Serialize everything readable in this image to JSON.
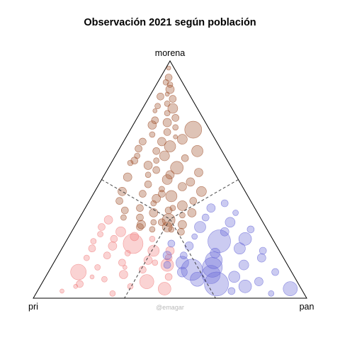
{
  "chart_data": {
    "type": "scatter",
    "coordinate_system": "ternary",
    "title": "Observación 2021 según población",
    "vertices": {
      "top": "morena",
      "left": "pri",
      "right": "pan"
    },
    "credit": "@emagar",
    "point_size_meaning": "población",
    "colors": {
      "morena": "#A0522D",
      "pri": "#F08080",
      "pan": "#6A6AD8"
    },
    "dashed_boundaries": true,
    "groups": [
      {
        "name": "morena",
        "points": [
          [
            0.97,
            0.02,
            0.01,
            3
          ],
          [
            0.93,
            0.04,
            0.03,
            5
          ],
          [
            0.9,
            0.05,
            0.05,
            4
          ],
          [
            0.88,
            0.06,
            0.06,
            6
          ],
          [
            0.86,
            0.08,
            0.06,
            3
          ],
          [
            0.84,
            0.07,
            0.09,
            5
          ],
          [
            0.82,
            0.1,
            0.08,
            4
          ],
          [
            0.8,
            0.09,
            0.11,
            7
          ],
          [
            0.78,
            0.12,
            0.1,
            4
          ],
          [
            0.76,
            0.1,
            0.14,
            5
          ],
          [
            0.74,
            0.14,
            0.12,
            6
          ],
          [
            0.72,
            0.12,
            0.16,
            4
          ],
          [
            0.7,
            0.16,
            0.14,
            5
          ],
          [
            0.68,
            0.14,
            0.18,
            3
          ],
          [
            0.66,
            0.2,
            0.14,
            6
          ],
          [
            0.64,
            0.18,
            0.18,
            8
          ],
          [
            0.62,
            0.24,
            0.14,
            5
          ],
          [
            0.6,
            0.22,
            0.18,
            7
          ],
          [
            0.58,
            0.26,
            0.16,
            4
          ],
          [
            0.56,
            0.3,
            0.14,
            6
          ],
          [
            0.55,
            0.2,
            0.25,
            9
          ],
          [
            0.54,
            0.28,
            0.18,
            5
          ],
          [
            0.52,
            0.32,
            0.16,
            4
          ],
          [
            0.5,
            0.26,
            0.24,
            7
          ],
          [
            0.48,
            0.34,
            0.18,
            5
          ],
          [
            0.47,
            0.22,
            0.31,
            6
          ],
          [
            0.46,
            0.3,
            0.24,
            4
          ],
          [
            0.44,
            0.38,
            0.18,
            5
          ],
          [
            0.43,
            0.28,
            0.29,
            8
          ],
          [
            0.42,
            0.34,
            0.24,
            6
          ],
          [
            0.4,
            0.36,
            0.24,
            4
          ],
          [
            0.39,
            0.26,
            0.35,
            7
          ],
          [
            0.38,
            0.42,
            0.2,
            5
          ],
          [
            0.37,
            0.32,
            0.31,
            5
          ],
          [
            0.36,
            0.38,
            0.26,
            6
          ],
          [
            0.35,
            0.28,
            0.37,
            4
          ],
          [
            0.34,
            0.44,
            0.22,
            5
          ],
          [
            0.33,
            0.34,
            0.33,
            9
          ],
          [
            0.32,
            0.4,
            0.28,
            4
          ],
          [
            0.31,
            0.3,
            0.39,
            6
          ],
          [
            0.3,
            0.46,
            0.24,
            5
          ],
          [
            0.3,
            0.36,
            0.34,
            7
          ],
          [
            0.29,
            0.42,
            0.29,
            4
          ],
          [
            0.28,
            0.32,
            0.4,
            5
          ],
          [
            0.45,
            0.45,
            0.1,
            6
          ],
          [
            0.41,
            0.48,
            0.11,
            5
          ],
          [
            0.57,
            0.36,
            0.07,
            4
          ],
          [
            0.63,
            0.3,
            0.07,
            5
          ],
          [
            0.51,
            0.4,
            0.09,
            6
          ],
          [
            0.69,
            0.22,
            0.09,
            4
          ],
          [
            0.75,
            0.18,
            0.07,
            5
          ],
          [
            0.81,
            0.14,
            0.05,
            4
          ],
          [
            0.71,
            0.06,
            0.23,
            12
          ],
          [
            0.62,
            0.09,
            0.29,
            8
          ],
          [
            0.53,
            0.13,
            0.34,
            6
          ],
          [
            0.45,
            0.16,
            0.39,
            7
          ],
          [
            0.66,
            0.27,
            0.07,
            5
          ],
          [
            0.59,
            0.15,
            0.26,
            5
          ],
          [
            0.49,
            0.18,
            0.33,
            6
          ],
          [
            0.41,
            0.21,
            0.38,
            5
          ],
          [
            0.36,
            0.24,
            0.4,
            6
          ],
          [
            0.34,
            0.5,
            0.16,
            4
          ],
          [
            0.37,
            0.48,
            0.15,
            5
          ],
          [
            0.6,
            0.32,
            0.08,
            4
          ],
          [
            0.73,
            0.2,
            0.07,
            6
          ],
          [
            0.79,
            0.16,
            0.05,
            3
          ],
          [
            0.85,
            0.11,
            0.04,
            5
          ],
          [
            0.91,
            0.06,
            0.03,
            4
          ],
          [
            0.67,
            0.12,
            0.21,
            7
          ],
          [
            0.58,
            0.34,
            0.08,
            5
          ],
          [
            0.52,
            0.24,
            0.24,
            6
          ],
          [
            0.44,
            0.31,
            0.25,
            5
          ],
          [
            0.38,
            0.3,
            0.32,
            4
          ],
          [
            0.32,
            0.37,
            0.31,
            5
          ],
          [
            0.31,
            0.45,
            0.24,
            6
          ],
          [
            0.29,
            0.35,
            0.36,
            4
          ]
        ]
      },
      {
        "name": "pri",
        "points": [
          [
            0.33,
            0.56,
            0.11,
            6
          ],
          [
            0.3,
            0.6,
            0.1,
            5
          ],
          [
            0.28,
            0.54,
            0.18,
            7
          ],
          [
            0.27,
            0.62,
            0.11,
            4
          ],
          [
            0.26,
            0.5,
            0.24,
            6
          ],
          [
            0.25,
            0.58,
            0.17,
            5
          ],
          [
            0.24,
            0.66,
            0.1,
            4
          ],
          [
            0.23,
            0.52,
            0.25,
            14
          ],
          [
            0.22,
            0.6,
            0.18,
            6
          ],
          [
            0.21,
            0.68,
            0.11,
            5
          ],
          [
            0.2,
            0.46,
            0.34,
            8
          ],
          [
            0.19,
            0.56,
            0.25,
            4
          ],
          [
            0.18,
            0.64,
            0.18,
            5
          ],
          [
            0.17,
            0.72,
            0.11,
            4
          ],
          [
            0.16,
            0.5,
            0.34,
            6
          ],
          [
            0.15,
            0.6,
            0.25,
            5
          ],
          [
            0.14,
            0.44,
            0.42,
            9
          ],
          [
            0.13,
            0.7,
            0.17,
            4
          ],
          [
            0.12,
            0.54,
            0.34,
            5
          ],
          [
            0.11,
            0.78,
            0.11,
            11
          ],
          [
            0.1,
            0.62,
            0.28,
            6
          ],
          [
            0.09,
            0.46,
            0.45,
            5
          ],
          [
            0.08,
            0.7,
            0.22,
            4
          ],
          [
            0.07,
            0.55,
            0.38,
            10
          ],
          [
            0.06,
            0.8,
            0.14,
            5
          ],
          [
            0.05,
            0.62,
            0.33,
            4
          ],
          [
            0.04,
            0.5,
            0.46,
            9
          ],
          [
            0.03,
            0.88,
            0.09,
            3
          ],
          [
            0.02,
            0.7,
            0.28,
            4
          ],
          [
            0.2,
            0.4,
            0.4,
            6
          ],
          [
            0.17,
            0.42,
            0.41,
            5
          ],
          [
            0.25,
            0.44,
            0.31,
            4
          ],
          [
            0.13,
            0.6,
            0.27,
            3
          ],
          [
            0.09,
            0.74,
            0.17,
            3
          ],
          [
            0.05,
            0.82,
            0.13,
            3
          ],
          [
            0.15,
            0.48,
            0.37,
            4
          ]
        ]
      },
      {
        "name": "pan",
        "points": [
          [
            0.4,
            0.1,
            0.5,
            5
          ],
          [
            0.38,
            0.16,
            0.46,
            6
          ],
          [
            0.36,
            0.08,
            0.56,
            4
          ],
          [
            0.34,
            0.2,
            0.46,
            5
          ],
          [
            0.32,
            0.12,
            0.56,
            7
          ],
          [
            0.3,
            0.24,
            0.46,
            8
          ],
          [
            0.29,
            0.06,
            0.65,
            5
          ],
          [
            0.28,
            0.16,
            0.56,
            6
          ],
          [
            0.26,
            0.28,
            0.46,
            4
          ],
          [
            0.25,
            0.1,
            0.65,
            9
          ],
          [
            0.24,
            0.2,
            0.56,
            16
          ],
          [
            0.22,
            0.32,
            0.46,
            6
          ],
          [
            0.21,
            0.14,
            0.65,
            8
          ],
          [
            0.2,
            0.06,
            0.74,
            5
          ],
          [
            0.19,
            0.24,
            0.57,
            7
          ],
          [
            0.18,
            0.36,
            0.46,
            5
          ],
          [
            0.17,
            0.08,
            0.75,
            6
          ],
          [
            0.16,
            0.26,
            0.58,
            12
          ],
          [
            0.15,
            0.38,
            0.47,
            9
          ],
          [
            0.14,
            0.16,
            0.7,
            7
          ],
          [
            0.13,
            0.28,
            0.59,
            14
          ],
          [
            0.12,
            0.36,
            0.52,
            15
          ],
          [
            0.11,
            0.06,
            0.83,
            5
          ],
          [
            0.1,
            0.3,
            0.6,
            13
          ],
          [
            0.09,
            0.22,
            0.69,
            8
          ],
          [
            0.08,
            0.36,
            0.56,
            10
          ],
          [
            0.07,
            0.14,
            0.79,
            6
          ],
          [
            0.06,
            0.3,
            0.64,
            17
          ],
          [
            0.05,
            0.2,
            0.75,
            9
          ],
          [
            0.04,
            0.04,
            0.92,
            10
          ],
          [
            0.03,
            0.26,
            0.71,
            5
          ],
          [
            0.02,
            0.12,
            0.86,
            4
          ],
          [
            0.18,
            0.42,
            0.4,
            6
          ],
          [
            0.14,
            0.44,
            0.42,
            5
          ],
          [
            0.11,
            0.4,
            0.49,
            7
          ],
          [
            0.23,
            0.38,
            0.39,
            5
          ]
        ]
      }
    ]
  }
}
